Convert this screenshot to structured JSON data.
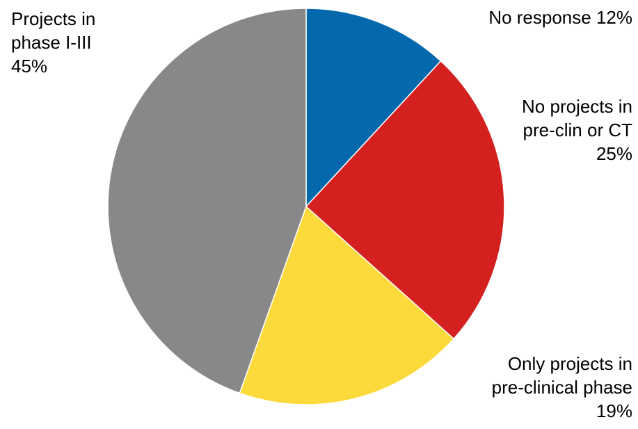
{
  "chart_data": {
    "type": "pie",
    "title": "",
    "start": "top",
    "direction": "clockwise",
    "slices": [
      {
        "lines": [
          "No response 12%"
        ],
        "value": 12,
        "color": "#0369AC"
      },
      {
        "lines": [
          "No projects in",
          "pre-clin or CT",
          "25%"
        ],
        "value": 25,
        "color": "#D52020"
      },
      {
        "lines": [
          "Only projects in",
          "pre-clinical phase",
          "19%"
        ],
        "value": 19,
        "color": "#FDDA3C"
      },
      {
        "lines": [
          "Projects in",
          "phase I-III",
          "45%"
        ],
        "value": 45,
        "color": "#888888"
      }
    ]
  }
}
